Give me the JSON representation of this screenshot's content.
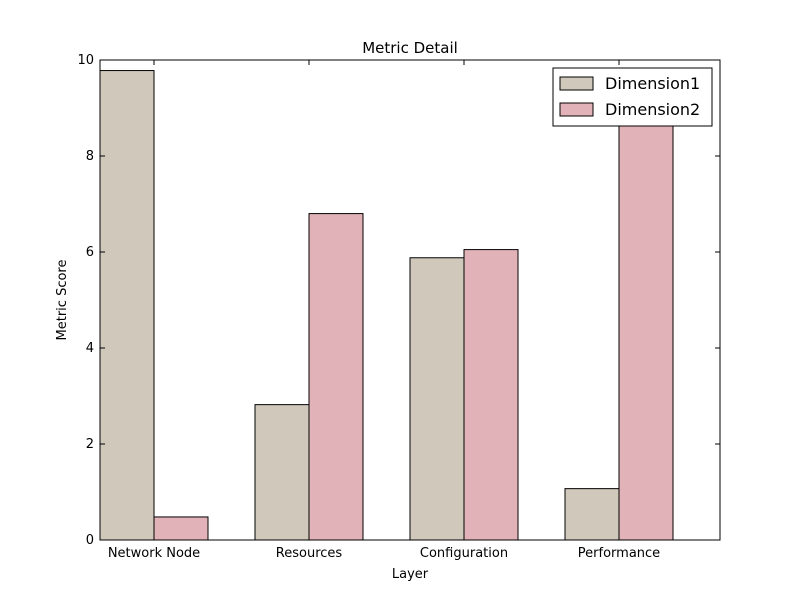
{
  "chart_data": {
    "type": "bar",
    "title": "Metric Detail",
    "xlabel": "Layer",
    "ylabel": "Metric Score",
    "categories": [
      "Network Node",
      "Resources",
      "Configuration",
      "Performance"
    ],
    "series": [
      {
        "name": "Dimension1",
        "color": "#d0c8bb",
        "values": [
          9.78,
          2.82,
          5.88,
          1.07
        ]
      },
      {
        "name": "Dimension2",
        "color": "#e2b2b9",
        "values": [
          0.48,
          6.8,
          6.05,
          8.72
        ]
      }
    ],
    "ylim": [
      0,
      10
    ],
    "yticks": [
      0,
      2,
      4,
      6,
      8,
      10
    ],
    "grid": false,
    "legend_position": "top-right"
  }
}
